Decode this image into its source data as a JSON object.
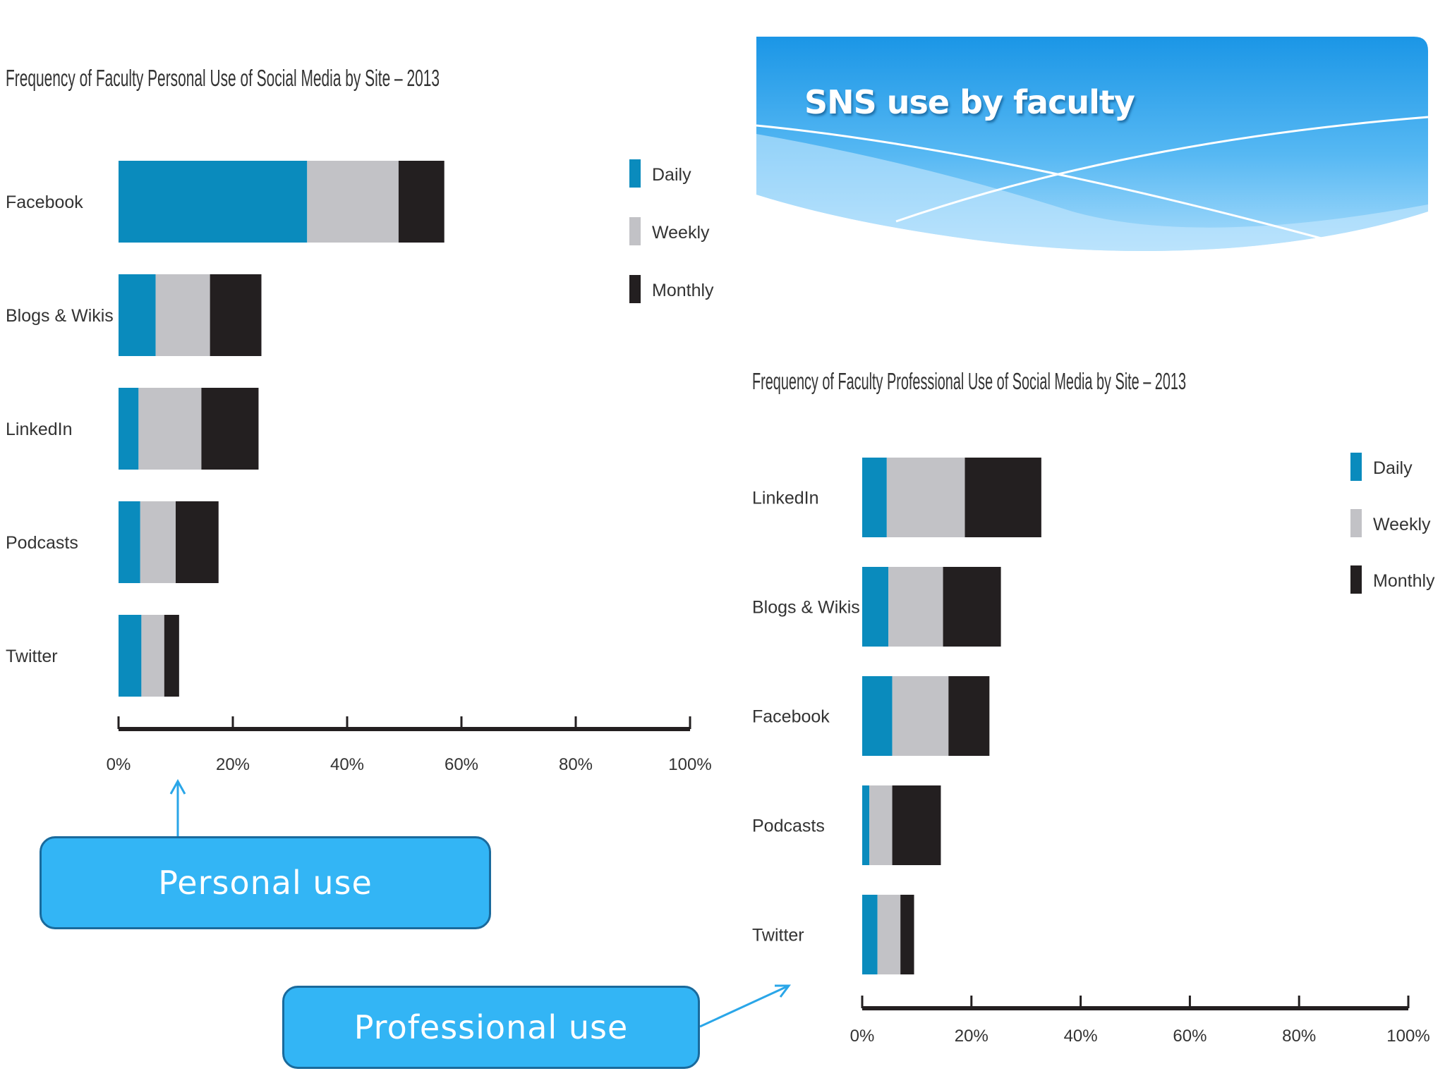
{
  "slide": {
    "title": "SNS use by faculty",
    "callouts": {
      "personal": "Personal use",
      "professional": "Professional use"
    }
  },
  "colors": {
    "daily": "#0a8bbd",
    "weekly": "#c2c2c6",
    "monthly": "#231f20",
    "axis": "#231f20",
    "text": "#333333",
    "banner_top": "#1e9be8",
    "banner_light": "#9fd8fb",
    "callout": "#33b5f5",
    "arrow": "#2aa6e8"
  },
  "chart_data": [
    {
      "type": "bar",
      "orientation": "horizontal",
      "stacked": true,
      "title": "Frequency of Faculty Personal Use of Social Media by Site – 2013",
      "categories": [
        "Facebook",
        "Blogs & Wikis",
        "LinkedIn",
        "Podcasts",
        "Twitter"
      ],
      "series": [
        {
          "name": "Daily",
          "values": [
            33,
            6.5,
            3.5,
            3.8,
            4
          ]
        },
        {
          "name": "Weekly",
          "values": [
            16,
            9.5,
            11,
            6.2,
            4
          ]
        },
        {
          "name": "Monthly",
          "values": [
            8,
            9,
            10,
            7.5,
            2.6
          ]
        }
      ],
      "xlim": [
        0,
        100
      ],
      "x_ticks": [
        "0%",
        "20%",
        "40%",
        "60%",
        "80%",
        "100%"
      ],
      "legend": [
        "Daily",
        "Weekly",
        "Monthly"
      ],
      "legend_position": "top-right",
      "grid": false
    },
    {
      "type": "bar",
      "orientation": "horizontal",
      "stacked": true,
      "title": "Frequency of Faculty Professional Use of Social Media by Site – 2013",
      "categories": [
        "LinkedIn",
        "Blogs & Wikis",
        "Facebook",
        "Podcasts",
        "Twitter"
      ],
      "series": [
        {
          "name": "Daily",
          "values": [
            4.5,
            4.8,
            5.5,
            1.3,
            2.8
          ]
        },
        {
          "name": "Weekly",
          "values": [
            14.3,
            10,
            10.3,
            4.2,
            4.2
          ]
        },
        {
          "name": "Monthly",
          "values": [
            14,
            10.6,
            7.5,
            8.9,
            2.5
          ]
        }
      ],
      "xlim": [
        0,
        100
      ],
      "x_ticks": [
        "0%",
        "20%",
        "40%",
        "60%",
        "80%",
        "100%"
      ],
      "legend": [
        "Daily",
        "Weekly",
        "Monthly"
      ],
      "legend_position": "top-right",
      "grid": false
    }
  ]
}
